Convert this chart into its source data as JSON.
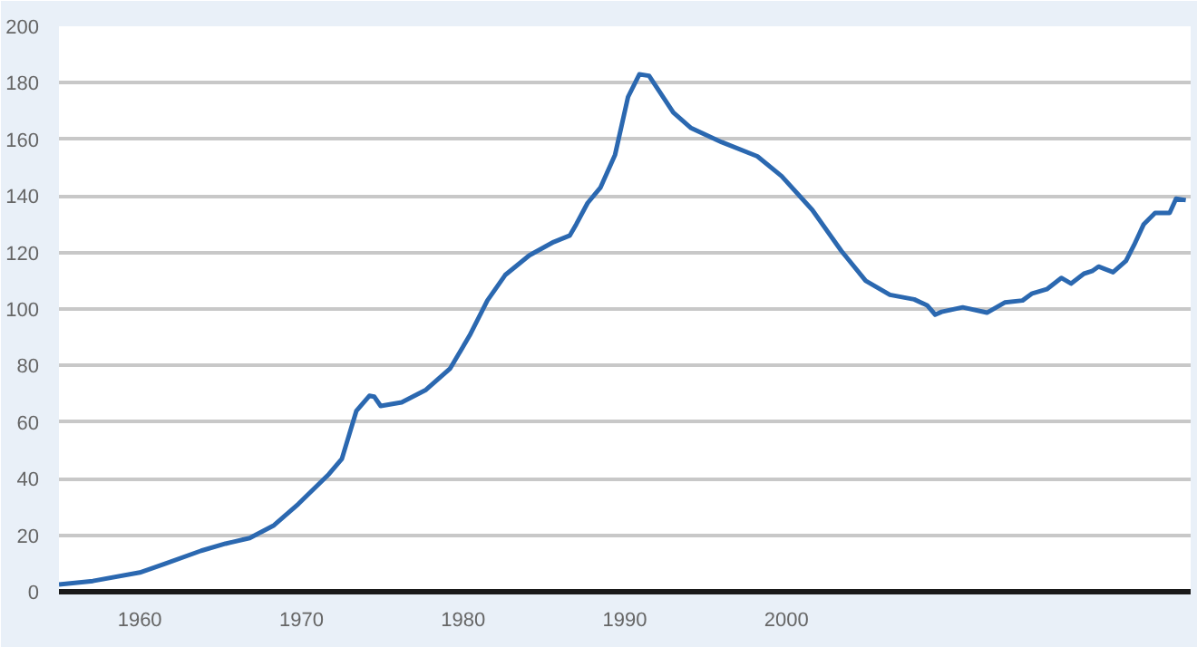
{
  "chart_data": {
    "type": "line",
    "x": [
      1955,
      1957.1,
      1960,
      1961.6,
      1963.8,
      1965.3,
      1966.8,
      1968.3,
      1969.8,
      1971.7,
      1972.5,
      1973.4,
      1974.2,
      1974.5,
      1974.9,
      1976.2,
      1977.7,
      1979.2,
      1980.4,
      1981.5,
      1982.6,
      1984.1,
      1985.6,
      1986.6,
      1987,
      1987.7,
      1988.5,
      1989.4,
      1990.2,
      1990.9,
      1991.5,
      1993,
      1994.1,
      1996,
      1998.2,
      1999.7,
      2001.6,
      2003.4,
      2004.9,
      2006.4,
      2007.9,
      2008.7,
      2009.2,
      2009.6,
      2010.9,
      2012.4,
      2013.5,
      2014.6,
      2015.2,
      2016.1,
      2017,
      2017.6,
      2018.4,
      2018.9,
      2019.3,
      2020.2,
      2021,
      2021.5,
      2022.1,
      2022.8,
      2023.7,
      2024.1,
      2024.7
    ],
    "series": [
      {
        "color": "#2b68b0",
        "values": [
          2.6,
          3.8,
          6.8,
          10,
          14.5,
          17,
          19,
          23.5,
          31,
          41.6,
          47,
          64,
          69.3,
          69,
          65.7,
          67,
          71.4,
          79,
          90.6,
          103,
          112,
          119,
          123.7,
          126,
          130,
          137.5,
          143,
          154.6,
          175,
          183,
          182.5,
          169.5,
          164,
          159,
          154,
          147,
          135,
          120.5,
          110,
          105,
          103.4,
          101.3,
          98,
          99,
          100.6,
          98.7,
          102.3,
          103,
          105.5,
          107,
          111,
          109,
          112.5,
          113.4,
          115,
          113,
          117,
          122.6,
          130,
          134,
          134,
          139,
          138.5
        ]
      }
    ],
    "xlim": [
      1955,
      2025
    ],
    "xticks": [
      1960,
      1970,
      1980,
      1990,
      2000
    ],
    "ylim": [
      0,
      200
    ],
    "yticks": [
      0,
      20,
      40,
      60,
      80,
      100,
      120,
      140,
      160,
      180,
      200
    ],
    "grid": "y",
    "marker": "none",
    "line_style": "solid"
  }
}
